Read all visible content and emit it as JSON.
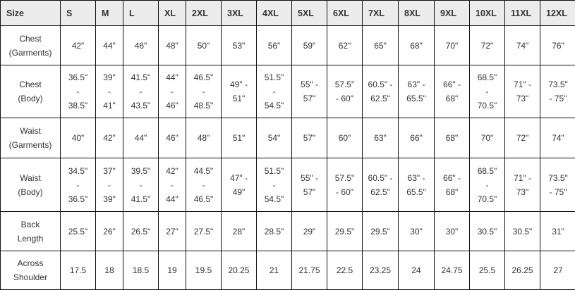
{
  "header": [
    "Size",
    "S",
    "M",
    "L",
    "XL",
    "2XL",
    "3XL",
    "4XL",
    "5XL",
    "6XL",
    "7XL",
    "8XL",
    "9XL",
    "10XL",
    "11XL",
    "12XL"
  ],
  "rows": [
    {
      "label": "Chest\n(Garments)",
      "values": [
        "42\"",
        "44\"",
        "46\"",
        "48\"",
        "50\"",
        "53\"",
        "56\"",
        "59\"",
        "62\"",
        "65\"",
        "68\"",
        "70\"",
        "72\"",
        "74\"",
        "76\""
      ]
    },
    {
      "label": "Chest\n(Body)",
      "values": [
        "36.5\"\n-\n38.5\"",
        "39\"\n-\n41\"",
        "41.5\"\n-\n43.5\"",
        "44\"\n-\n46\"",
        "46.5\"\n-\n48.5\"",
        "49\" -\n51\"",
        "51.5\"\n-\n54.5\"",
        "55\" -\n57\"",
        "57.5\"\n- 60\"",
        "60.5\" -\n62.5\"",
        "63\" -\n65.5\"",
        "66\" -\n68\"",
        "68.5\"\n-\n70.5\"",
        "71\" -\n73\"",
        "73.5\"\n- 75\""
      ]
    },
    {
      "label": "Waist\n(Garments)",
      "values": [
        "40\"",
        "42\"",
        "44\"",
        "46\"",
        "48\"",
        "51\"",
        "54\"",
        "57\"",
        "60\"",
        "63\"",
        "66\"",
        "68\"",
        "70\"",
        "72\"",
        "74\""
      ]
    },
    {
      "label": "Waist\n(Body)",
      "values": [
        "34.5\"\n-\n36.5\"",
        "37\"\n-\n39\"",
        "39.5\"\n-\n41.5\"",
        "42\"\n-\n44\"",
        "44.5\"\n-\n46.5\"",
        "47\" -\n49\"",
        "51.5\"\n-\n54.5\"",
        "55\" -\n57\"",
        "57.5\"\n- 60\"",
        "60.5\" -\n62.5\"",
        "63\" -\n65.5\"",
        "66\" -\n68\"",
        "68.5\"\n-\n70.5\"",
        "71\" -\n73\"",
        "73.5\"\n- 75\""
      ]
    },
    {
      "label": "Back\nLength",
      "values": [
        "25.5\"",
        "26\"",
        "26.5\"",
        "27\"",
        "27.5\"",
        "28\"",
        "28.5\"",
        "29\"",
        "29.5\"",
        "29.5\"",
        "30\"",
        "30\"",
        "30.5\"",
        "30.5\"",
        "31\""
      ]
    },
    {
      "label": "Across\nShoulder",
      "values": [
        "17.5",
        "18",
        "18.5",
        "19",
        "19.5",
        "20.25",
        "21",
        "21.75",
        "22.5",
        "23.25",
        "24",
        "24.75",
        "25.5",
        "26.25",
        "27"
      ]
    }
  ]
}
